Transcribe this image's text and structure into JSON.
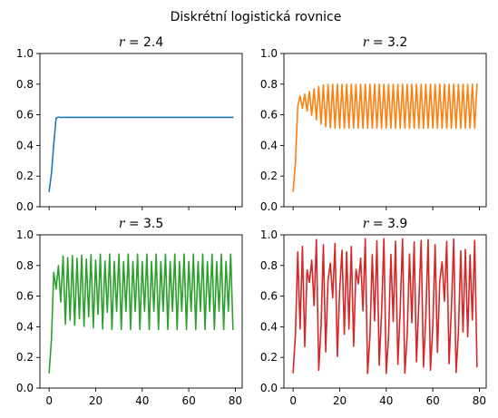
{
  "figure": {
    "suptitle": "Diskrétní logistická rovnice"
  },
  "chart_data": [
    {
      "type": "line",
      "title": "r = 2.4",
      "r": 2.4,
      "color": "#1f77b4",
      "x0": 0.1,
      "n_points": 80,
      "xlim": [
        -3.95,
        82.95
      ],
      "ylim": [
        0,
        1
      ],
      "xticks": [
        0,
        20,
        40,
        60,
        80
      ],
      "yticks": [
        0.0,
        0.2,
        0.4,
        0.6,
        0.8,
        1.0
      ],
      "xtick_labels": [
        "",
        "",
        "",
        "",
        ""
      ],
      "ytick_labels": [
        "0.0",
        "0.2",
        "0.4",
        "0.6",
        "0.8",
        "1.0"
      ]
    },
    {
      "type": "line",
      "title": "r = 3.2",
      "r": 3.2,
      "color": "#ff7f0e",
      "x0": 0.1,
      "n_points": 80,
      "xlim": [
        -3.95,
        82.95
      ],
      "ylim": [
        0,
        1
      ],
      "xticks": [
        0,
        20,
        40,
        60,
        80
      ],
      "yticks": [
        0.0,
        0.2,
        0.4,
        0.6,
        0.8,
        1.0
      ],
      "xtick_labels": [
        "",
        "",
        "",
        "",
        ""
      ],
      "ytick_labels": [
        "0.0",
        "0.2",
        "0.4",
        "0.6",
        "0.8",
        "1.0"
      ]
    },
    {
      "type": "line",
      "title": "r = 3.5",
      "r": 3.5,
      "color": "#2ca02c",
      "x0": 0.1,
      "n_points": 80,
      "xlim": [
        -3.95,
        82.95
      ],
      "ylim": [
        0,
        1
      ],
      "xticks": [
        0,
        20,
        40,
        60,
        80
      ],
      "yticks": [
        0.0,
        0.2,
        0.4,
        0.6,
        0.8,
        1.0
      ],
      "xtick_labels": [
        "0",
        "20",
        "40",
        "60",
        "80"
      ],
      "ytick_labels": [
        "0.0",
        "0.2",
        "0.4",
        "0.6",
        "0.8",
        "1.0"
      ]
    },
    {
      "type": "line",
      "title": "r = 3.9",
      "r": 3.9,
      "color": "#d62728",
      "x0": 0.1,
      "n_points": 80,
      "xlim": [
        -3.95,
        82.95
      ],
      "ylim": [
        0,
        1
      ],
      "xticks": [
        0,
        20,
        40,
        60,
        80
      ],
      "yticks": [
        0.0,
        0.2,
        0.4,
        0.6,
        0.8,
        1.0
      ],
      "xtick_labels": [
        "0",
        "20",
        "40",
        "60",
        "80"
      ],
      "ytick_labels": [
        "0.0",
        "0.2",
        "0.4",
        "0.6",
        "0.8",
        "1.0"
      ]
    }
  ]
}
